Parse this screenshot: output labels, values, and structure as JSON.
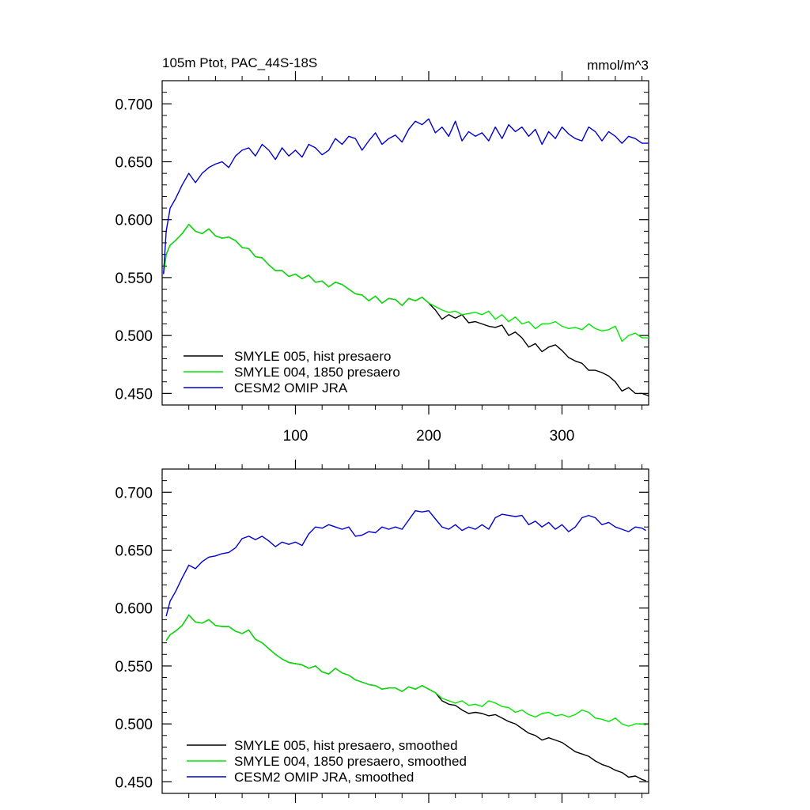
{
  "chart_data": [
    {
      "type": "line",
      "title": "105m Ptot, PAC_44S-18S",
      "units": "mmol/m^3",
      "xlim": [
        0,
        365
      ],
      "ylim": [
        0.44,
        0.72
      ],
      "x_ticks": [
        100,
        200,
        300
      ],
      "y_ticks": [
        "0.450",
        "0.500",
        "0.550",
        "0.600",
        "0.650",
        "0.700"
      ],
      "legend_position": "bottom-left",
      "series": [
        {
          "name": "SMYLE 005, hist presaero",
          "color": "#000000",
          "x": [
            1,
            3,
            6,
            10,
            15,
            20,
            25,
            30,
            35,
            40,
            45,
            50,
            55,
            60,
            65,
            70,
            75,
            80,
            85,
            90,
            95,
            100,
            105,
            110,
            115,
            120,
            125,
            130,
            135,
            140,
            145,
            150,
            155,
            160,
            165,
            170,
            175,
            180,
            185,
            190,
            195,
            200,
            205,
            210,
            215,
            220,
            225,
            230,
            235,
            240,
            245,
            250,
            255,
            260,
            265,
            270,
            275,
            280,
            285,
            290,
            295,
            300,
            305,
            310,
            315,
            320,
            325,
            330,
            335,
            340,
            345,
            350,
            355,
            360,
            365
          ],
          "values": [
            0.553,
            0.57,
            0.578,
            0.582,
            0.588,
            0.596,
            0.59,
            0.588,
            0.592,
            0.586,
            0.584,
            0.585,
            0.582,
            0.576,
            0.575,
            0.568,
            0.567,
            0.561,
            0.556,
            0.556,
            0.551,
            0.553,
            0.549,
            0.552,
            0.546,
            0.547,
            0.542,
            0.546,
            0.544,
            0.54,
            0.536,
            0.535,
            0.53,
            0.534,
            0.528,
            0.532,
            0.531,
            0.526,
            0.532,
            0.53,
            0.533,
            0.528,
            0.522,
            0.514,
            0.518,
            0.515,
            0.518,
            0.511,
            0.512,
            0.51,
            0.508,
            0.507,
            0.509,
            0.5,
            0.503,
            0.498,
            0.49,
            0.493,
            0.486,
            0.49,
            0.492,
            0.487,
            0.481,
            0.478,
            0.476,
            0.47,
            0.47,
            0.468,
            0.465,
            0.46,
            0.452,
            0.455,
            0.45,
            0.45,
            0.448
          ]
        },
        {
          "name": "SMYLE 004, 1850 presaero",
          "color": "#00e800",
          "x": [
            1,
            3,
            6,
            10,
            15,
            20,
            25,
            30,
            35,
            40,
            45,
            50,
            55,
            60,
            65,
            70,
            75,
            80,
            85,
            90,
            95,
            100,
            105,
            110,
            115,
            120,
            125,
            130,
            135,
            140,
            145,
            150,
            155,
            160,
            165,
            170,
            175,
            180,
            185,
            190,
            195,
            200,
            205,
            210,
            215,
            220,
            225,
            230,
            235,
            240,
            245,
            250,
            255,
            260,
            265,
            270,
            275,
            280,
            285,
            290,
            295,
            300,
            305,
            310,
            315,
            320,
            325,
            330,
            335,
            340,
            345,
            350,
            355,
            360,
            365
          ],
          "values": [
            0.553,
            0.57,
            0.578,
            0.582,
            0.588,
            0.596,
            0.59,
            0.588,
            0.592,
            0.586,
            0.584,
            0.585,
            0.582,
            0.576,
            0.575,
            0.568,
            0.567,
            0.561,
            0.556,
            0.556,
            0.551,
            0.553,
            0.549,
            0.552,
            0.546,
            0.547,
            0.542,
            0.546,
            0.544,
            0.54,
            0.536,
            0.535,
            0.53,
            0.534,
            0.528,
            0.532,
            0.531,
            0.526,
            0.532,
            0.53,
            0.533,
            0.528,
            0.525,
            0.522,
            0.52,
            0.521,
            0.518,
            0.519,
            0.52,
            0.518,
            0.521,
            0.514,
            0.518,
            0.512,
            0.516,
            0.51,
            0.512,
            0.506,
            0.51,
            0.51,
            0.512,
            0.508,
            0.506,
            0.507,
            0.505,
            0.51,
            0.506,
            0.504,
            0.505,
            0.508,
            0.495,
            0.5,
            0.502,
            0.498,
            0.498
          ]
        },
        {
          "name": "CESM2 OMIP JRA",
          "color": "#0000cc",
          "x": [
            1,
            3,
            6,
            10,
            15,
            20,
            25,
            30,
            35,
            40,
            45,
            50,
            55,
            60,
            65,
            70,
            75,
            80,
            85,
            90,
            95,
            100,
            105,
            110,
            115,
            120,
            125,
            130,
            135,
            140,
            145,
            150,
            155,
            160,
            165,
            170,
            175,
            180,
            185,
            190,
            195,
            200,
            205,
            210,
            215,
            220,
            225,
            230,
            235,
            240,
            245,
            250,
            255,
            260,
            265,
            270,
            275,
            280,
            285,
            290,
            295,
            300,
            305,
            310,
            315,
            320,
            325,
            330,
            335,
            340,
            345,
            350,
            355,
            360,
            365
          ],
          "values": [
            0.553,
            0.59,
            0.61,
            0.618,
            0.63,
            0.64,
            0.632,
            0.64,
            0.645,
            0.648,
            0.65,
            0.645,
            0.655,
            0.66,
            0.662,
            0.655,
            0.665,
            0.66,
            0.652,
            0.662,
            0.655,
            0.66,
            0.654,
            0.665,
            0.662,
            0.656,
            0.66,
            0.67,
            0.665,
            0.672,
            0.67,
            0.66,
            0.668,
            0.675,
            0.665,
            0.67,
            0.673,
            0.667,
            0.678,
            0.685,
            0.682,
            0.687,
            0.675,
            0.68,
            0.672,
            0.685,
            0.668,
            0.676,
            0.672,
            0.675,
            0.668,
            0.68,
            0.67,
            0.682,
            0.676,
            0.68,
            0.672,
            0.678,
            0.665,
            0.676,
            0.67,
            0.68,
            0.674,
            0.67,
            0.668,
            0.68,
            0.676,
            0.668,
            0.676,
            0.672,
            0.666,
            0.672,
            0.67,
            0.666,
            0.666
          ]
        }
      ]
    },
    {
      "type": "line",
      "title": "",
      "xlim": [
        0,
        365
      ],
      "ylim": [
        0.44,
        0.72
      ],
      "y_ticks": [
        "0.450",
        "0.500",
        "0.550",
        "0.600",
        "0.650",
        "0.700"
      ],
      "legend_position": "bottom-left",
      "series": [
        {
          "name": "SMYLE 005, hist presaero, smoothed",
          "color": "#000000",
          "x": [
            3,
            6,
            10,
            15,
            20,
            25,
            30,
            35,
            40,
            45,
            50,
            55,
            60,
            65,
            70,
            75,
            80,
            85,
            90,
            95,
            100,
            105,
            110,
            115,
            120,
            125,
            130,
            135,
            140,
            145,
            150,
            155,
            160,
            165,
            170,
            175,
            180,
            185,
            190,
            195,
            200,
            205,
            210,
            215,
            220,
            225,
            230,
            235,
            240,
            245,
            250,
            255,
            260,
            265,
            270,
            275,
            280,
            285,
            290,
            295,
            300,
            305,
            310,
            315,
            320,
            325,
            330,
            335,
            340,
            345,
            350,
            355,
            360,
            363
          ],
          "values": [
            0.572,
            0.577,
            0.58,
            0.585,
            0.594,
            0.588,
            0.587,
            0.59,
            0.585,
            0.584,
            0.584,
            0.58,
            0.578,
            0.581,
            0.573,
            0.57,
            0.565,
            0.56,
            0.556,
            0.553,
            0.552,
            0.551,
            0.548,
            0.55,
            0.545,
            0.543,
            0.548,
            0.544,
            0.542,
            0.538,
            0.536,
            0.534,
            0.533,
            0.53,
            0.531,
            0.531,
            0.528,
            0.532,
            0.53,
            0.533,
            0.53,
            0.527,
            0.52,
            0.517,
            0.516,
            0.512,
            0.509,
            0.51,
            0.509,
            0.507,
            0.508,
            0.505,
            0.502,
            0.5,
            0.496,
            0.492,
            0.49,
            0.486,
            0.488,
            0.486,
            0.484,
            0.48,
            0.476,
            0.474,
            0.472,
            0.468,
            0.465,
            0.463,
            0.46,
            0.458,
            0.454,
            0.455,
            0.452,
            0.451
          ]
        },
        {
          "name": "SMYLE 004, 1850 presaero, smoothed",
          "color": "#00e800",
          "x": [
            3,
            6,
            10,
            15,
            20,
            25,
            30,
            35,
            40,
            45,
            50,
            55,
            60,
            65,
            70,
            75,
            80,
            85,
            90,
            95,
            100,
            105,
            110,
            115,
            120,
            125,
            130,
            135,
            140,
            145,
            150,
            155,
            160,
            165,
            170,
            175,
            180,
            185,
            190,
            195,
            200,
            205,
            210,
            215,
            220,
            225,
            230,
            235,
            240,
            245,
            250,
            255,
            260,
            265,
            270,
            275,
            280,
            285,
            290,
            295,
            300,
            305,
            310,
            315,
            320,
            325,
            330,
            335,
            340,
            345,
            350,
            355,
            360,
            363
          ],
          "values": [
            0.572,
            0.577,
            0.58,
            0.585,
            0.594,
            0.588,
            0.587,
            0.59,
            0.585,
            0.584,
            0.584,
            0.58,
            0.578,
            0.581,
            0.573,
            0.57,
            0.565,
            0.56,
            0.556,
            0.553,
            0.552,
            0.551,
            0.548,
            0.55,
            0.545,
            0.543,
            0.548,
            0.544,
            0.542,
            0.538,
            0.536,
            0.534,
            0.533,
            0.53,
            0.531,
            0.531,
            0.528,
            0.532,
            0.53,
            0.533,
            0.53,
            0.527,
            0.522,
            0.52,
            0.518,
            0.52,
            0.516,
            0.517,
            0.515,
            0.52,
            0.518,
            0.515,
            0.514,
            0.51,
            0.512,
            0.508,
            0.506,
            0.509,
            0.51,
            0.507,
            0.508,
            0.506,
            0.508,
            0.512,
            0.51,
            0.505,
            0.504,
            0.502,
            0.505,
            0.5,
            0.498,
            0.5,
            0.5,
            0.499
          ]
        },
        {
          "name": "CESM2 OMIP JRA, smoothed",
          "color": "#0000cc",
          "x": [
            3,
            6,
            10,
            15,
            20,
            25,
            30,
            35,
            40,
            45,
            50,
            55,
            60,
            65,
            70,
            75,
            80,
            85,
            90,
            95,
            100,
            105,
            110,
            115,
            120,
            125,
            130,
            135,
            140,
            145,
            150,
            155,
            160,
            165,
            170,
            175,
            180,
            185,
            190,
            195,
            200,
            205,
            210,
            215,
            220,
            225,
            230,
            235,
            240,
            245,
            250,
            255,
            260,
            265,
            270,
            275,
            280,
            285,
            290,
            295,
            300,
            305,
            310,
            315,
            320,
            325,
            330,
            335,
            340,
            345,
            350,
            355,
            360,
            363
          ],
          "values": [
            0.593,
            0.606,
            0.614,
            0.626,
            0.637,
            0.634,
            0.64,
            0.644,
            0.645,
            0.647,
            0.648,
            0.652,
            0.66,
            0.662,
            0.659,
            0.662,
            0.658,
            0.653,
            0.657,
            0.655,
            0.657,
            0.654,
            0.664,
            0.67,
            0.669,
            0.672,
            0.67,
            0.668,
            0.67,
            0.662,
            0.663,
            0.666,
            0.665,
            0.67,
            0.668,
            0.67,
            0.668,
            0.676,
            0.684,
            0.683,
            0.684,
            0.677,
            0.67,
            0.668,
            0.672,
            0.667,
            0.67,
            0.668,
            0.672,
            0.668,
            0.678,
            0.681,
            0.68,
            0.679,
            0.68,
            0.672,
            0.675,
            0.67,
            0.674,
            0.668,
            0.672,
            0.666,
            0.67,
            0.678,
            0.68,
            0.678,
            0.672,
            0.674,
            0.67,
            0.668,
            0.666,
            0.67,
            0.669,
            0.667
          ]
        }
      ]
    }
  ]
}
